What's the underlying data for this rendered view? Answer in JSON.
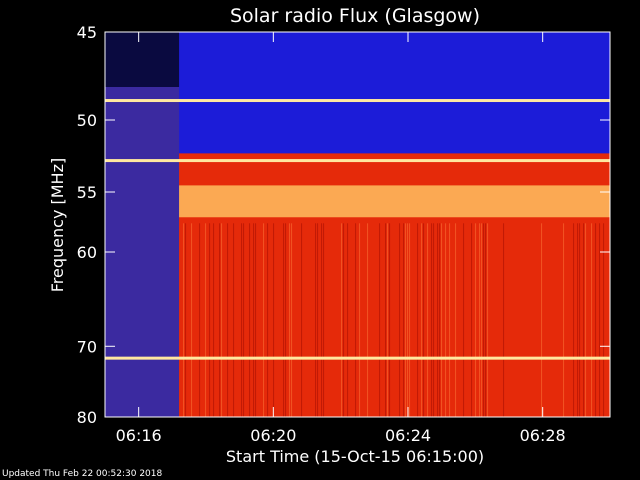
{
  "chart_data": {
    "type": "heatmap",
    "title": "Solar radio Flux (Glasgow)",
    "xlabel": "Start Time (15-Oct-15 06:15:00)",
    "ylabel_text": "Frequency ",
    "ylabel_unit": "MHz",
    "x_ticks": [
      "06:16",
      "06:20",
      "06:24",
      "06:28"
    ],
    "x_tick_minutes": [
      1,
      5,
      9,
      13
    ],
    "xlim_minutes": [
      0,
      15
    ],
    "y_ticks": [
      "45",
      "50",
      "55",
      "60",
      "70",
      "80"
    ],
    "y_tick_values": [
      45,
      50,
      55,
      60,
      70,
      80
    ],
    "ylim": [
      45,
      80
    ],
    "y_scale": "reciprocal",
    "onset_minute": 2.2,
    "colors": {
      "pre_onset": "#3b2aa0",
      "low_band": "#1c1cd8",
      "main": "#e52a0a",
      "hot": "#ffc060",
      "saturated": "#ffe8a0",
      "background": "#000000"
    },
    "bright_lines_mhz": [
      48.8,
      52.7,
      71.5
    ],
    "hot_band_mhz": [
      54.5,
      57.0
    ]
  },
  "footer_text": "Updated Thu Feb 22 00:52:30 2018"
}
